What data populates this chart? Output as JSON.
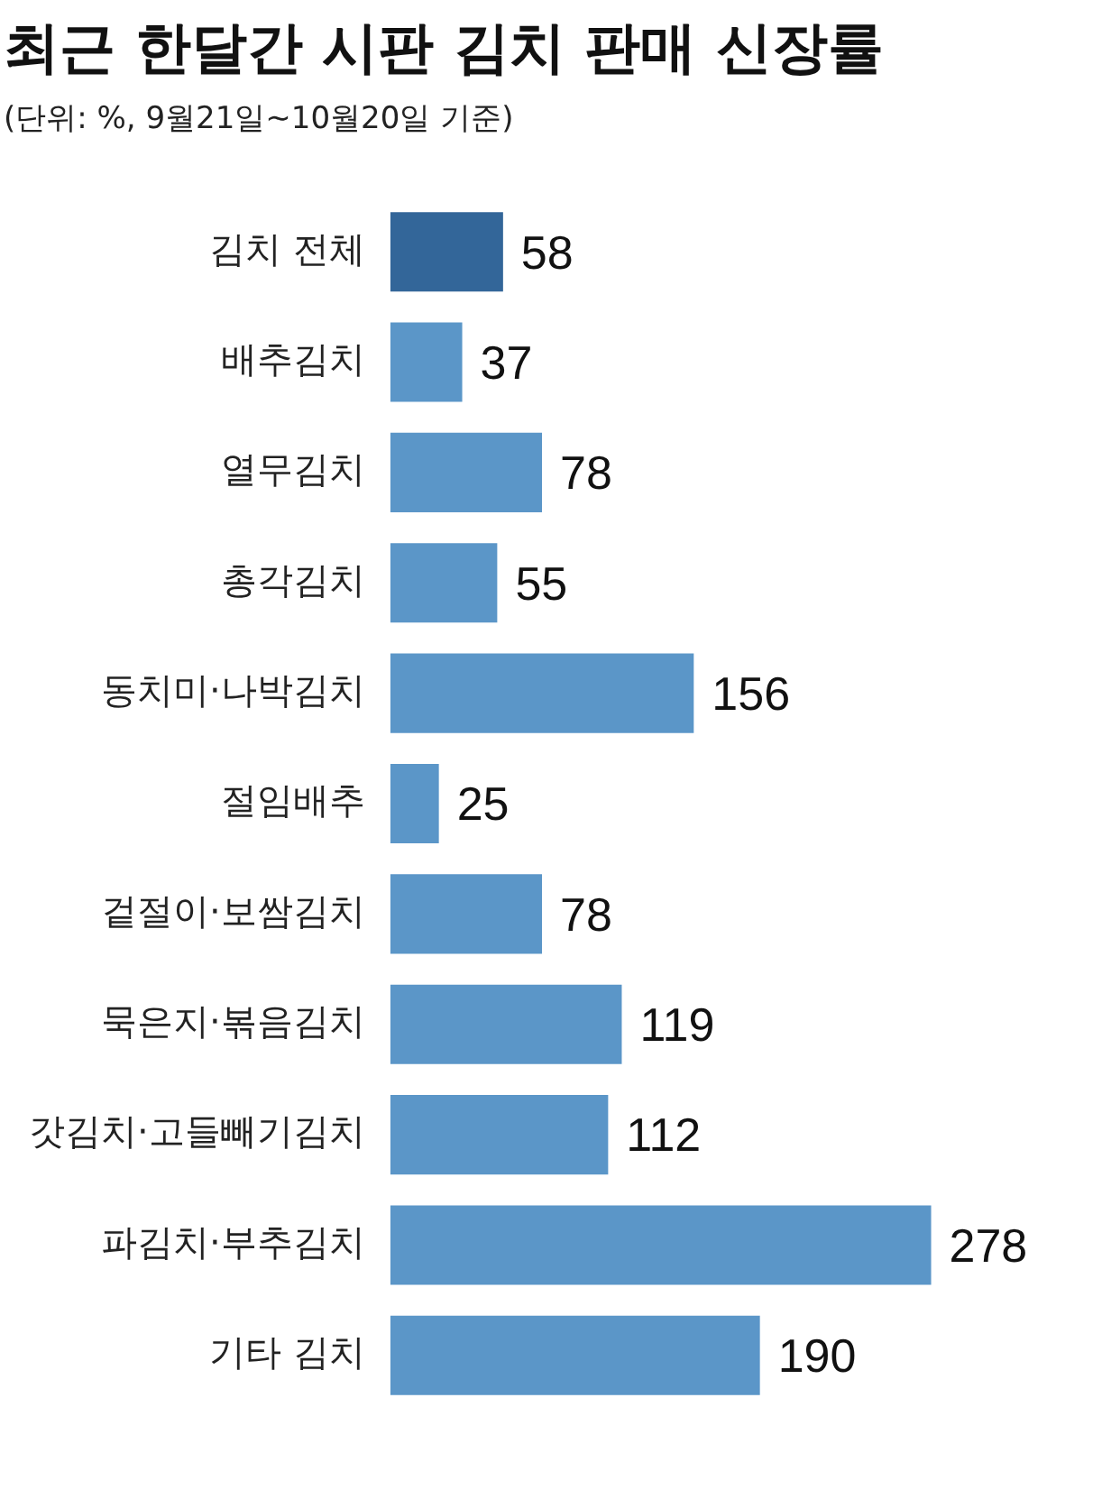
{
  "chart_data": {
    "type": "bar",
    "orientation": "horizontal",
    "title": "최근 한달간 시판 김치 판매 신장률",
    "subtitle": "(단위: %, 9월21일~10월20일 기준)",
    "categories": [
      "김치 전체",
      "배추김치",
      "열무김치",
      "총각김치",
      "동치미·나박김치",
      "절임배추",
      "겉절이·보쌈김치",
      "묵은지·볶음김치",
      "갓김치·고들빼기김치",
      "파김치·부추김치",
      "기타 김치"
    ],
    "values": [
      58,
      37,
      78,
      55,
      156,
      25,
      78,
      119,
      112,
      278,
      190
    ],
    "colors": [
      "#336699",
      "#5b96c8",
      "#5b96c8",
      "#5b96c8",
      "#5b96c8",
      "#5b96c8",
      "#5b96c8",
      "#5b96c8",
      "#5b96c8",
      "#5b96c8",
      "#5b96c8"
    ],
    "data_labels": true,
    "grid": false,
    "legend": false
  }
}
